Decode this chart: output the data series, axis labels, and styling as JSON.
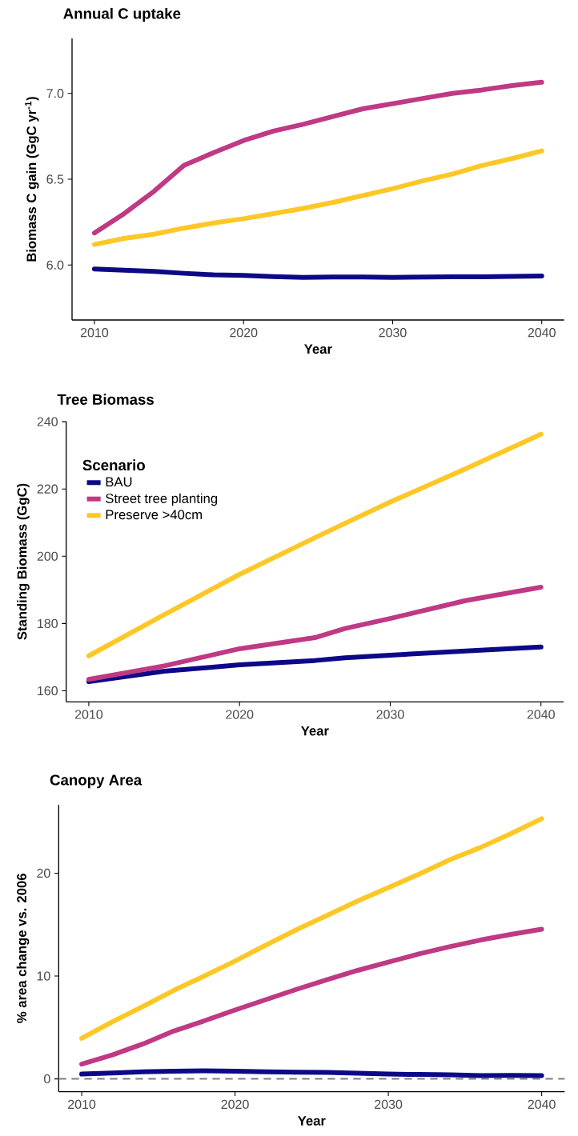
{
  "chart_data": [
    {
      "type": "line",
      "title": "Annual C uptake",
      "xlabel": "Year",
      "ylabel": "Biomass C gain (GgC  yr$^{-1}$)",
      "xlim": [
        2008.5,
        2041.5
      ],
      "ylim": [
        5.68,
        7.32
      ],
      "xticks": [
        2010,
        2020,
        2030,
        2040
      ],
      "yticks": [
        {
          "value": 6,
          "label": "6.0"
        },
        {
          "value": 6.5,
          "label": "6.5"
        },
        {
          "value": 7,
          "label": "7.0"
        }
      ],
      "x": [
        2010,
        2012,
        2014,
        2016,
        2018,
        2020,
        2022,
        2024,
        2026,
        2028,
        2030,
        2032,
        2034,
        2036,
        2038,
        2040
      ],
      "series": [
        {
          "color": "#0d0887",
          "values": [
            5.977,
            5.97,
            5.963,
            5.952,
            5.943,
            5.94,
            5.933,
            5.928,
            5.93,
            5.93,
            5.928,
            5.93,
            5.932,
            5.932,
            5.934,
            5.936
          ]
        },
        {
          "color": "#bf3984",
          "values": [
            6.187,
            6.3,
            6.43,
            6.58,
            6.655,
            6.725,
            6.78,
            6.82,
            6.865,
            6.91,
            6.94,
            6.97,
            7.0,
            7.02,
            7.045,
            7.065
          ]
        },
        {
          "color": "#fdc827",
          "values": [
            6.12,
            6.155,
            6.18,
            6.215,
            6.245,
            6.27,
            6.3,
            6.33,
            6.365,
            6.405,
            6.445,
            6.49,
            6.53,
            6.58,
            6.62,
            6.665
          ]
        }
      ]
    },
    {
      "type": "line",
      "title": "Tree Biomass",
      "xlabel": "Year",
      "ylabel": "Standing Biomass (GgC)",
      "xlim": [
        2008.5,
        2041.5
      ],
      "ylim": [
        156.7,
        240.1
      ],
      "xticks": [
        2010,
        2020,
        2030,
        2040
      ],
      "yticks": [
        160,
        180,
        200,
        220,
        240
      ],
      "legend": "top left",
      "legend_title": "Scenario",
      "x": [
        2010,
        2015,
        2020,
        2025,
        2027,
        2030,
        2035,
        2040
      ],
      "series": [
        {
          "name": "BAU",
          "color": "#0d0887",
          "values": [
            162.7,
            165.8,
            167.7,
            169,
            169.8,
            170.6,
            171.8,
            173
          ]
        },
        {
          "name": "Street tree planting",
          "color": "#bf3984",
          "values": [
            163.4,
            167.4,
            172.5,
            175.8,
            178.5,
            181.5,
            186.8,
            190.8
          ]
        },
        {
          "name": "Preserve >40cm",
          "color": "#fdc827",
          "values": [
            170.4,
            182.6,
            194.6,
            205.5,
            209.8,
            216.1,
            226,
            236.3
          ]
        }
      ]
    },
    {
      "type": "line",
      "title": "Canopy Area",
      "xlabel": "Year",
      "ylabel": "% area change vs. 2006",
      "xlim": [
        2008.5,
        2041.5
      ],
      "ylim": [
        -1.25,
        26.65
      ],
      "xticks": [
        2010,
        2020,
        2030,
        2040
      ],
      "yticks": [
        0,
        10,
        20
      ],
      "ref_lines": [
        {
          "axis": "y",
          "value": 0,
          "color": "#808080",
          "line_style": "dashed"
        }
      ],
      "x": [
        2010,
        2012,
        2014,
        2016,
        2018,
        2020,
        2022,
        2024,
        2026,
        2028,
        2030,
        2032,
        2034,
        2036,
        2038,
        2040
      ],
      "series": [
        {
          "color": "#0d0887",
          "values": [
            0.47,
            0.58,
            0.68,
            0.74,
            0.79,
            0.74,
            0.68,
            0.66,
            0.64,
            0.55,
            0.47,
            0.43,
            0.39,
            0.32,
            0.33,
            0.32
          ]
        },
        {
          "color": "#bf3984",
          "values": [
            1.43,
            2.33,
            3.4,
            4.65,
            5.65,
            6.7,
            7.7,
            8.7,
            9.65,
            10.55,
            11.35,
            12.15,
            12.85,
            13.5,
            14.05,
            14.55
          ]
        },
        {
          "color": "#fdc827",
          "values": [
            3.94,
            5.55,
            7.05,
            8.6,
            10.0,
            11.45,
            13.0,
            14.5,
            15.9,
            17.3,
            18.6,
            19.9,
            21.3,
            22.5,
            23.85,
            25.3
          ]
        }
      ]
    }
  ]
}
